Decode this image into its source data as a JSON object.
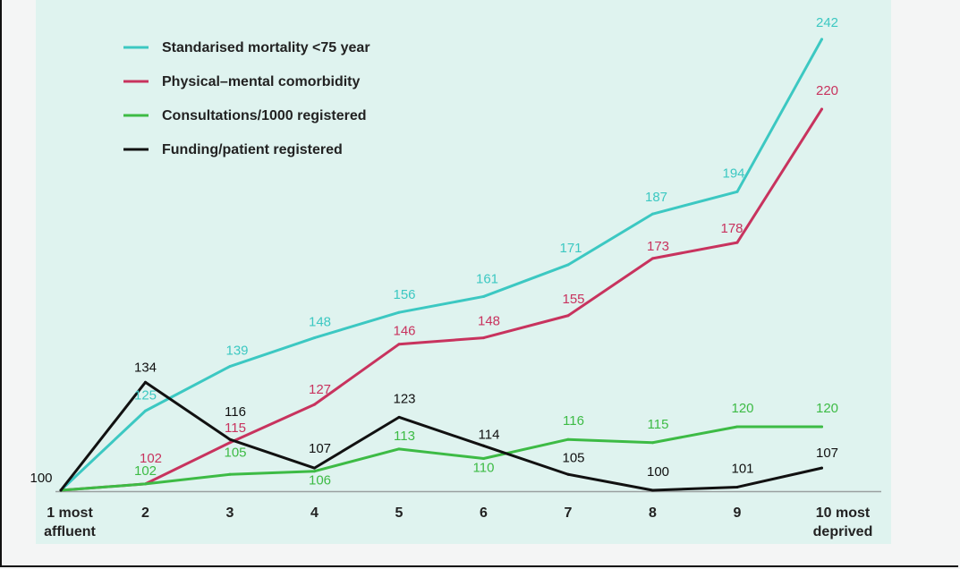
{
  "chart_data": {
    "type": "line",
    "categories": [
      "1 most affluent",
      "2",
      "3",
      "4",
      "5",
      "6",
      "7",
      "8",
      "9",
      "10 most deprived"
    ],
    "category_lines": [
      [
        "1 most",
        "affluent"
      ],
      [
        "2"
      ],
      [
        "3"
      ],
      [
        "4"
      ],
      [
        "5"
      ],
      [
        "6"
      ],
      [
        "7"
      ],
      [
        "8"
      ],
      [
        "9"
      ],
      [
        "10 most",
        "deprived"
      ]
    ],
    "series": [
      {
        "name": "Standarised mortality <75 year",
        "color": "#3cc8c2",
        "values": [
          100,
          125,
          139,
          148,
          156,
          161,
          171,
          187,
          194,
          242
        ]
      },
      {
        "name": "Physical–mental comorbidity",
        "color": "#c8335e",
        "values": [
          100,
          102,
          115,
          127,
          146,
          148,
          155,
          173,
          178,
          220
        ]
      },
      {
        "name": "Consultations/1000 registered",
        "color": "#3dbb45",
        "values": [
          100,
          102,
          105,
          106,
          113,
          110,
          116,
          115,
          120,
          120
        ]
      },
      {
        "name": "Funding/patient registered",
        "color": "#111111",
        "values": [
          100,
          134,
          116,
          107,
          123,
          114,
          105,
          100,
          101,
          107
        ]
      }
    ],
    "data_labels": [
      {
        "series": 0,
        "labels": [
          "",
          "125",
          "139",
          "148",
          "156",
          "161",
          "171",
          "187",
          "194",
          "242"
        ]
      },
      {
        "series": 1,
        "labels": [
          "",
          "102",
          "115",
          "127",
          "146",
          "148",
          "155",
          "173",
          "178",
          "220"
        ]
      },
      {
        "series": 2,
        "labels": [
          "",
          "102",
          "105",
          "106",
          "113",
          "110",
          "116",
          "115",
          "120",
          "120"
        ]
      },
      {
        "series": 3,
        "labels": [
          "100",
          "134",
          "116",
          "107",
          "123",
          "114",
          "105",
          "100",
          "101",
          "107"
        ]
      }
    ],
    "ylim": [
      100,
      242
    ],
    "grid": false,
    "legend": "top-left"
  }
}
